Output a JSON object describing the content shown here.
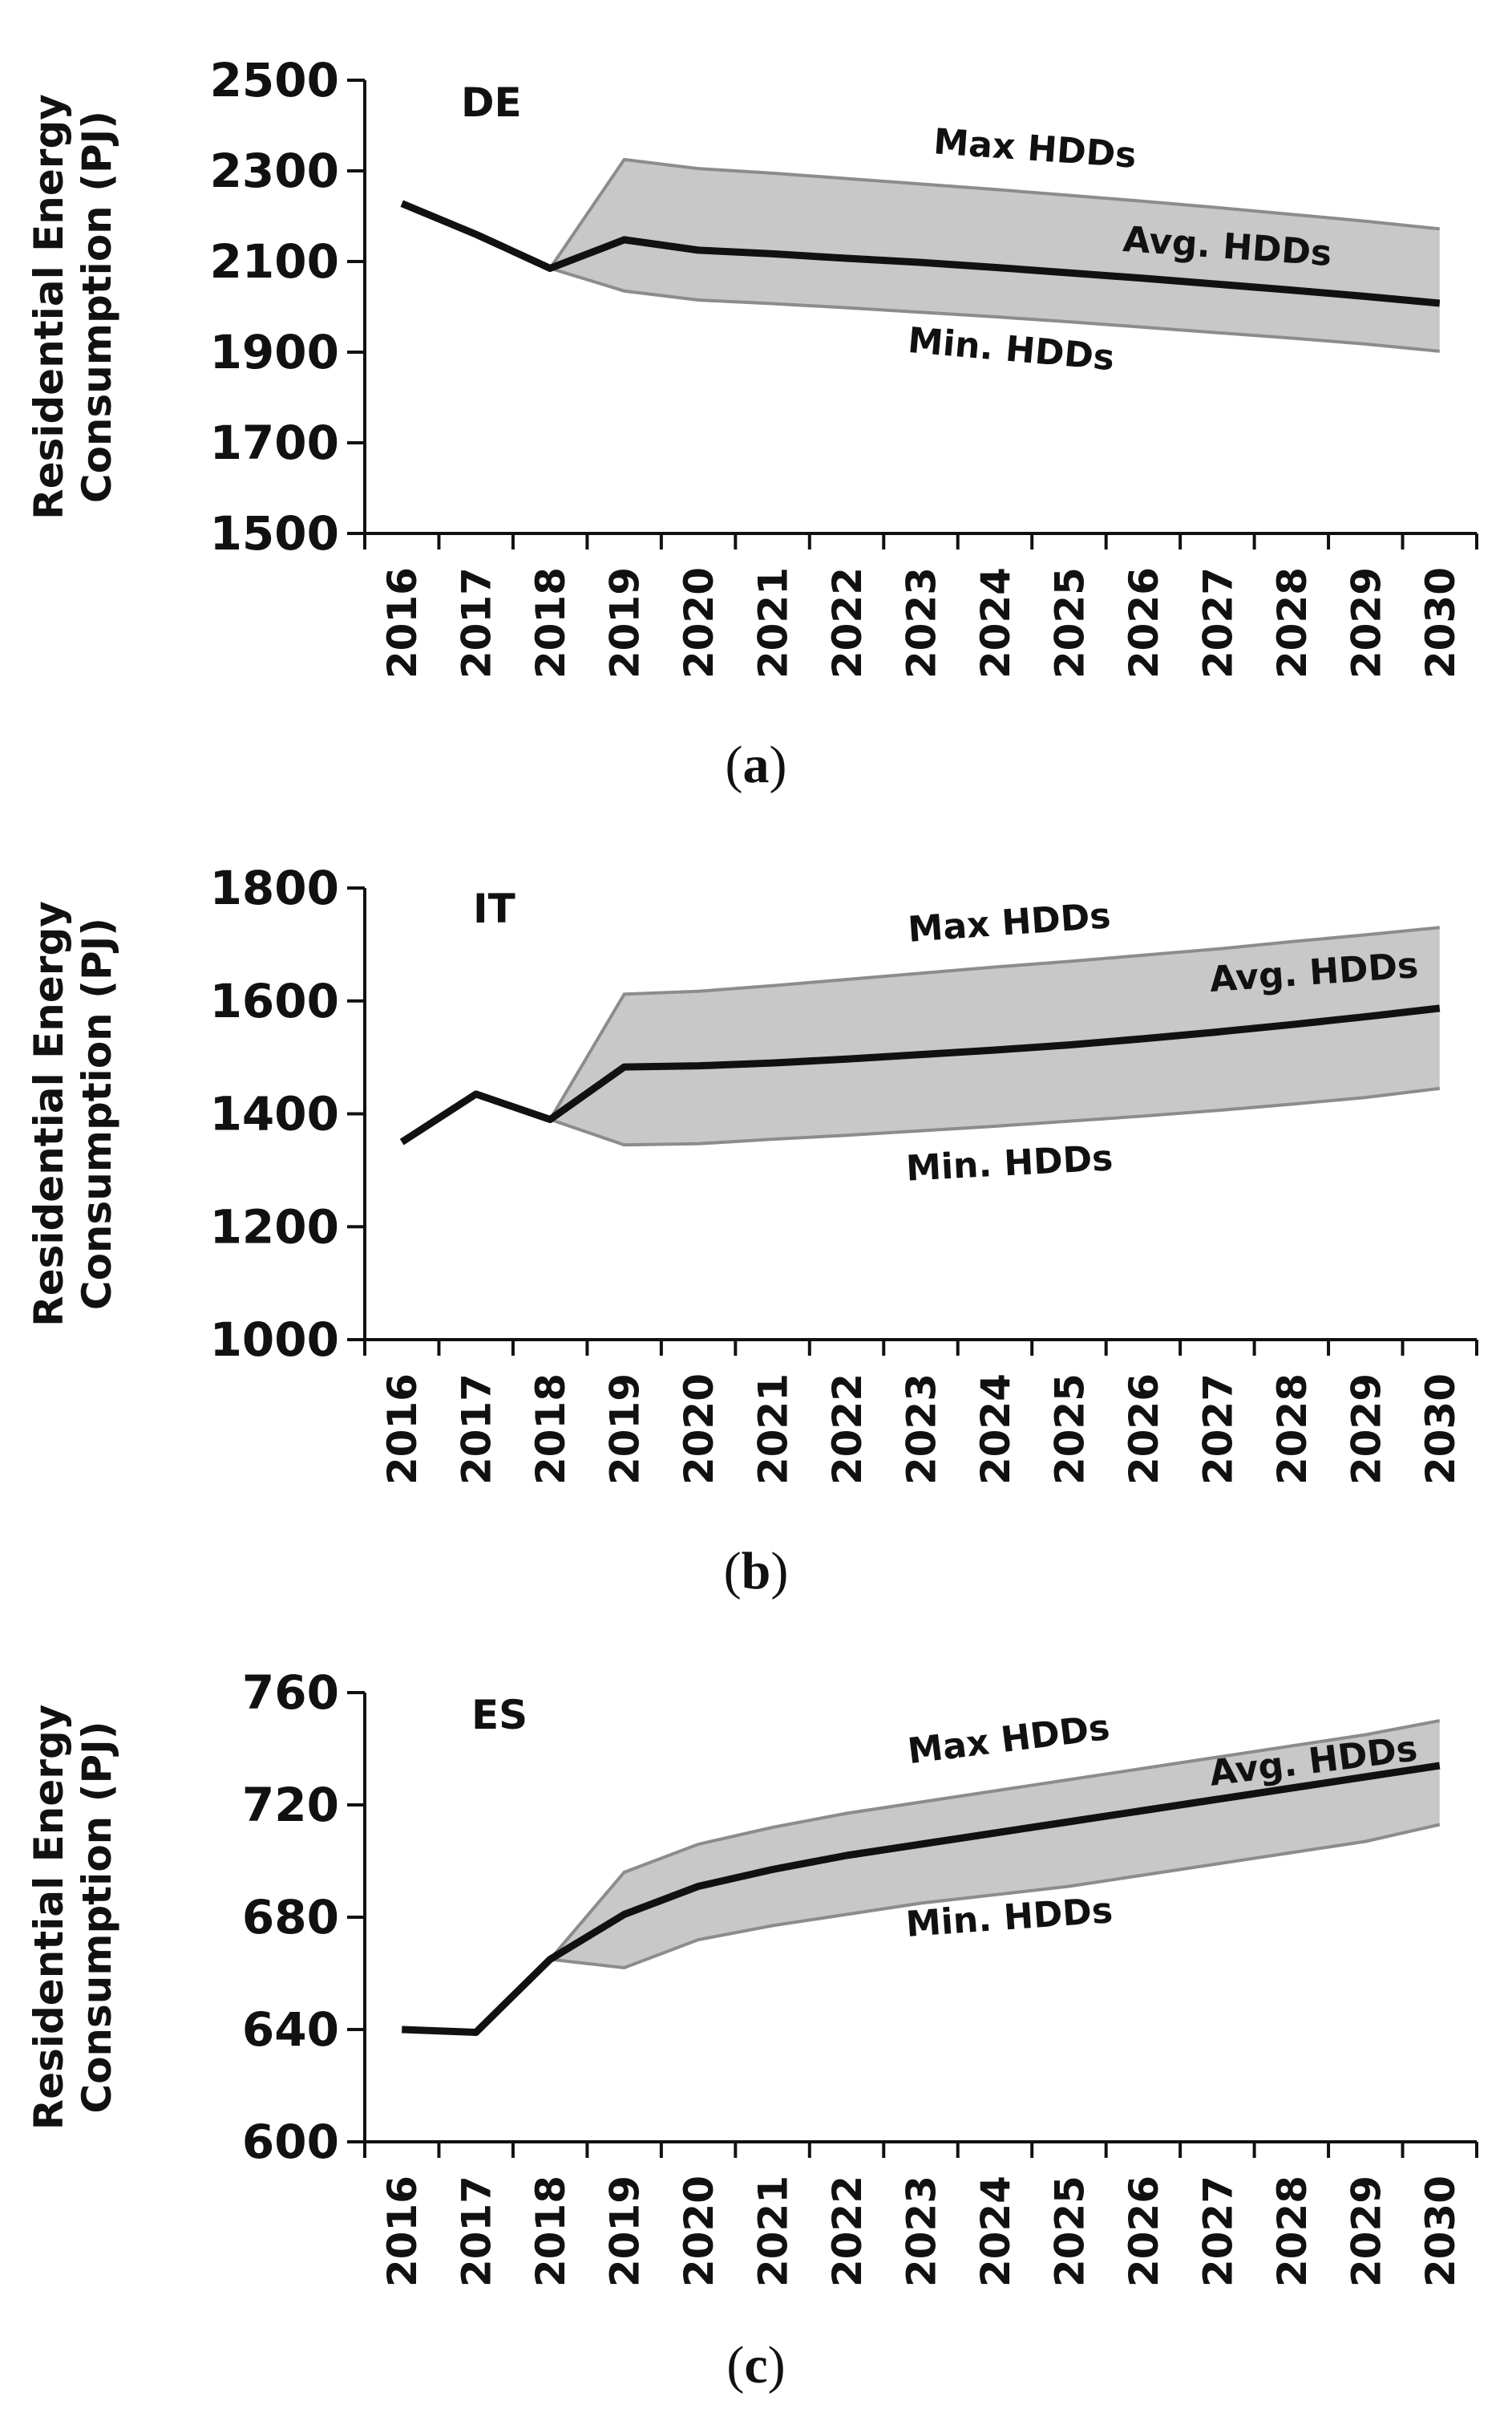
{
  "chart_data": [
    {
      "type": "area",
      "id": "a",
      "country": "DE",
      "caption_letter": "a",
      "ylabel_line1": "Residential Energy",
      "ylabel_line2": "Consumption (PJ)",
      "ylim": [
        1500,
        2500
      ],
      "yticks": [
        1500,
        1700,
        1900,
        2100,
        2300,
        2500
      ],
      "x": [
        "2016",
        "2017",
        "2018",
        "2019",
        "2020",
        "2021",
        "2022",
        "2023",
        "2024",
        "2025",
        "2026",
        "2027",
        "2028",
        "2029",
        "2030"
      ],
      "series": [
        {
          "name": "Avg. HDDs",
          "values": [
            2228,
            2160,
            2085,
            2148,
            2125,
            2117,
            2107,
            2098,
            2087,
            2075,
            2063,
            2050,
            2037,
            2023,
            2008
          ]
        },
        {
          "name": "Max HDDs",
          "values": [
            null,
            null,
            2085,
            2325,
            2305,
            2295,
            2283,
            2271,
            2259,
            2246,
            2233,
            2219,
            2204,
            2189,
            2172
          ]
        },
        {
          "name": "Min. HDDs",
          "values": [
            null,
            null,
            2085,
            2035,
            2015,
            2007,
            1998,
            1988,
            1978,
            1967,
            1955,
            1943,
            1931,
            1918,
            1902
          ]
        }
      ],
      "annotations": {
        "max": "Max HDDs",
        "avg": "Avg. HDDs",
        "min": "Min. HDDs"
      }
    },
    {
      "type": "area",
      "id": "b",
      "country": "IT",
      "caption_letter": "b",
      "ylabel_line1": "Residential Energy",
      "ylabel_line2": "Consumption (PJ)",
      "ylim": [
        1000,
        1800
      ],
      "yticks": [
        1000,
        1200,
        1400,
        1600,
        1800
      ],
      "x": [
        "2016",
        "2017",
        "2018",
        "2019",
        "2020",
        "2021",
        "2022",
        "2023",
        "2024",
        "2025",
        "2026",
        "2027",
        "2028",
        "2029",
        "2030"
      ],
      "series": [
        {
          "name": "Avg. HDDs",
          "values": [
            1350,
            1435,
            1390,
            1483,
            1485,
            1490,
            1497,
            1505,
            1513,
            1522,
            1533,
            1545,
            1558,
            1572,
            1587
          ]
        },
        {
          "name": "Max HDDs",
          "values": [
            null,
            null,
            1390,
            1612,
            1617,
            1627,
            1638,
            1649,
            1660,
            1670,
            1681,
            1692,
            1705,
            1717,
            1730
          ]
        },
        {
          "name": "Min. HDDs",
          "values": [
            null,
            null,
            1390,
            1345,
            1347,
            1355,
            1362,
            1370,
            1378,
            1387,
            1396,
            1406,
            1417,
            1429,
            1445
          ]
        }
      ],
      "annotations": {
        "max": "Max HDDs",
        "avg": "Avg. HDDs",
        "min": "Min. HDDs"
      }
    },
    {
      "type": "area",
      "id": "c",
      "country": "ES",
      "caption_letter": "c",
      "ylabel_line1": "Residential Energy",
      "ylabel_line2": "Consumption (PJ)",
      "ylim": [
        600,
        760
      ],
      "yticks": [
        600,
        640,
        680,
        720,
        760
      ],
      "x": [
        "2016",
        "2017",
        "2018",
        "2019",
        "2020",
        "2021",
        "2022",
        "2023",
        "2024",
        "2025",
        "2026",
        "2027",
        "2028",
        "2029",
        "2030"
      ],
      "series": [
        {
          "name": "Avg. HDDs",
          "values": [
            640,
            639,
            665,
            681,
            691,
            697,
            702,
            706,
            710,
            714,
            718,
            722,
            726,
            730,
            734
          ]
        },
        {
          "name": "Max HDDs",
          "values": [
            null,
            null,
            665,
            696,
            706,
            712,
            717,
            721,
            725,
            729,
            733,
            737,
            741,
            745,
            750
          ]
        },
        {
          "name": "Min. HDDs",
          "values": [
            null,
            null,
            665,
            662,
            672,
            677,
            681,
            685,
            688,
            691,
            695,
            699,
            703,
            707,
            713
          ]
        }
      ],
      "annotations": {
        "max": "Max HDDs",
        "avg": "Avg. HDDs",
        "min": "Min. HDDs"
      }
    }
  ]
}
